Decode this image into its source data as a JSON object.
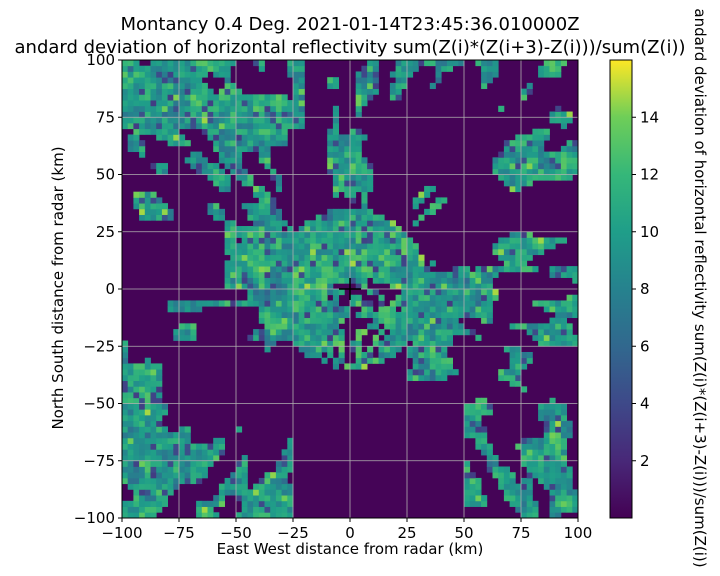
{
  "chart_data": {
    "type": "heatmap",
    "title": "Montancy 0.4 Deg. 2021-01-14T23:45:36.010000Z",
    "subtitle": "andard deviation of horizontal reflectivity sum(Z(i)*(Z(i+3)-Z(i)))/sum(Z(i))",
    "xlabel": "East West distance from radar (km)",
    "ylabel": "North South distance from radar (km)",
    "colorbar_label": "andard deviation of horizontal reflectivity sum(Z(i)*(Z(i+3)-Z(i)))/sum(Z(i))",
    "xlim": [
      -100,
      100
    ],
    "ylim": [
      -100,
      100
    ],
    "xticks": [
      -100,
      -75,
      -50,
      -25,
      0,
      25,
      50,
      75,
      100
    ],
    "yticks": [
      -100,
      -75,
      -50,
      -25,
      0,
      25,
      50,
      75,
      100
    ],
    "colorbar_range": [
      0,
      16
    ],
    "colorbar_ticks": [
      2,
      4,
      6,
      8,
      10,
      12,
      14
    ],
    "colormap": "viridis",
    "grid": true,
    "radar_marker": [
      0,
      0
    ],
    "clutter_regions": [
      {
        "kind": "dense",
        "x": [
          -100,
          -25
        ],
        "y": [
          75,
          100
        ]
      },
      {
        "kind": "mixed",
        "x": [
          25,
          100
        ],
        "y": [
          55,
          100
        ]
      },
      {
        "kind": "empty",
        "x": [
          -100,
          -50
        ],
        "y": [
          0,
          30
        ]
      },
      {
        "kind": "dense",
        "x": [
          -25,
          40
        ],
        "y": [
          -20,
          30
        ]
      },
      {
        "kind": "patchy",
        "x": [
          -100,
          -30
        ],
        "y": [
          -100,
          -30
        ]
      },
      {
        "kind": "empty",
        "x": [
          -25,
          50
        ],
        "y": [
          -100,
          -40
        ]
      },
      {
        "kind": "patchy",
        "x": [
          50,
          100
        ],
        "y": [
          -100,
          -30
        ]
      }
    ]
  }
}
